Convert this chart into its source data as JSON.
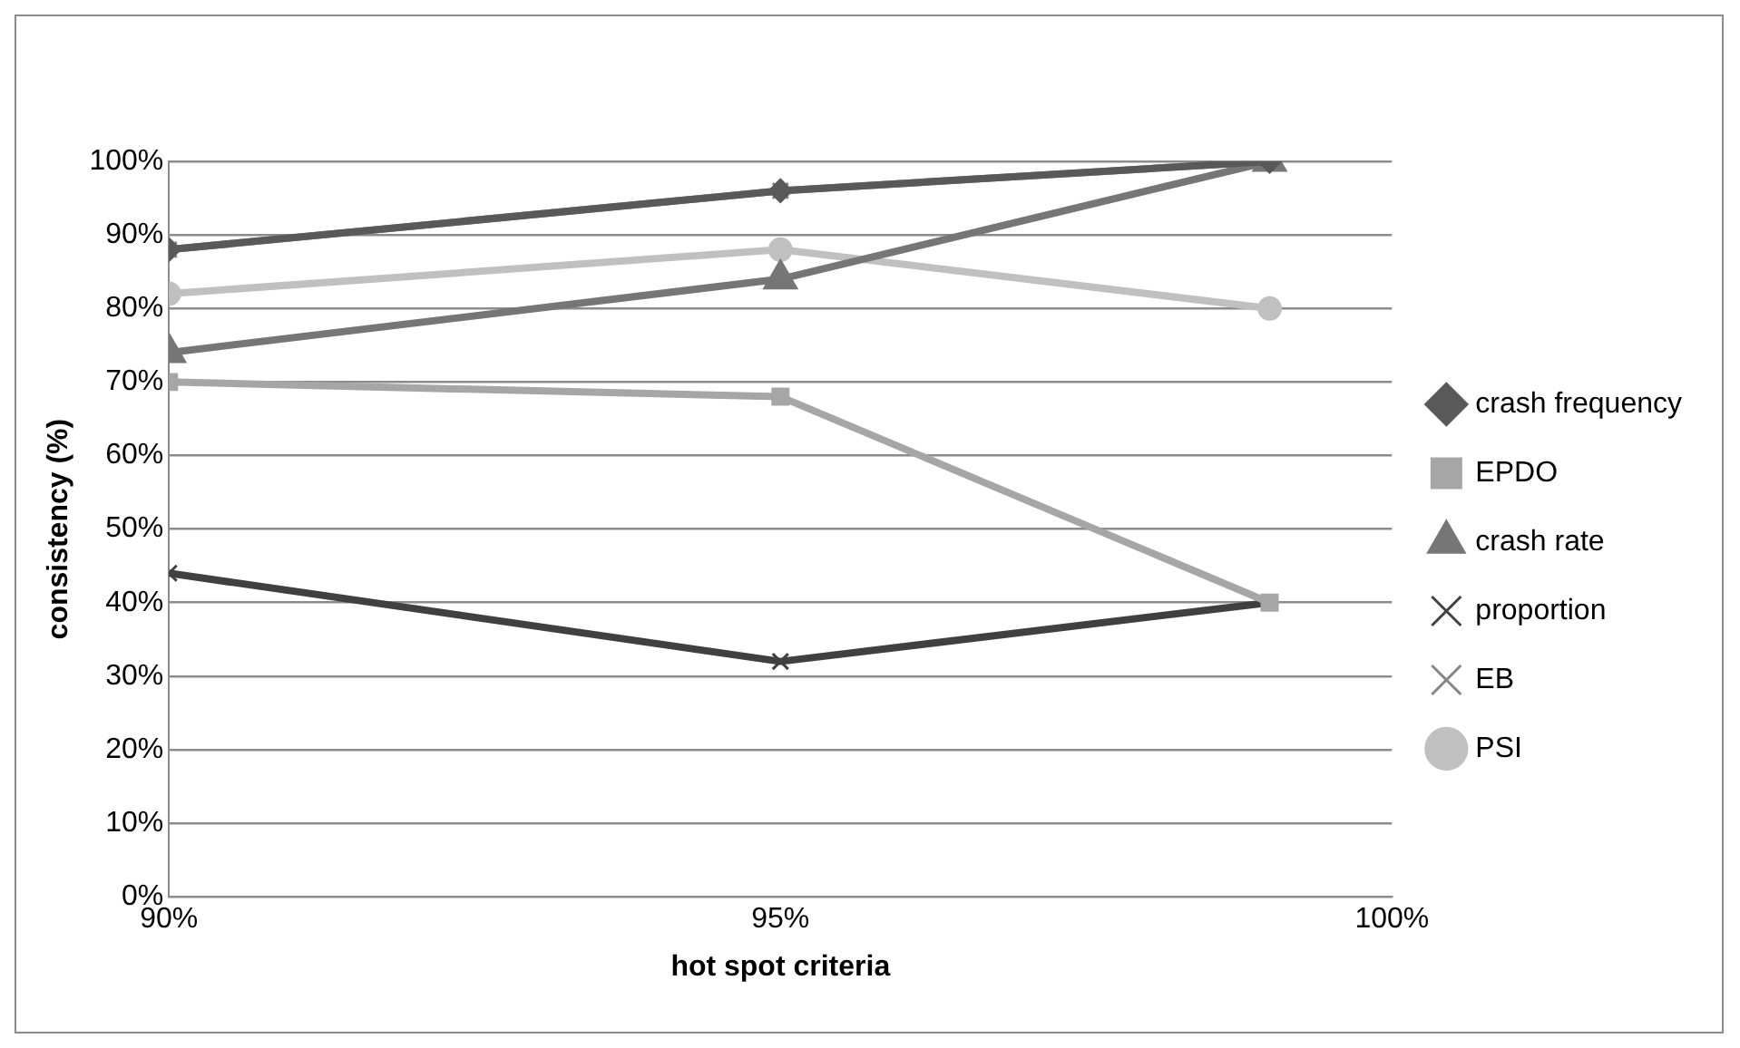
{
  "chart_data": {
    "type": "line",
    "xlabel": "hot spot criteria",
    "ylabel": "consistency (%)",
    "x": [
      90,
      95,
      99
    ],
    "series": [
      {
        "name": "crash frequency",
        "color": "#595959",
        "marker": "diamond",
        "values": [
          88,
          96,
          100
        ]
      },
      {
        "name": "EPDO",
        "color": "#a6a6a6",
        "marker": "square",
        "values": [
          70,
          68,
          40
        ]
      },
      {
        "name": "crash rate",
        "color": "#767676",
        "marker": "triangle",
        "values": [
          74,
          84,
          100
        ]
      },
      {
        "name": "proportion",
        "color": "#404040",
        "marker": "cross",
        "values": [
          44,
          32,
          40
        ]
      },
      {
        "name": "EB",
        "color": "#878787",
        "marker": "cross",
        "values": [
          88,
          96,
          100
        ]
      },
      {
        "name": "PSI",
        "color": "#c0c0c0",
        "marker": "circle",
        "values": [
          82,
          88,
          80
        ]
      }
    ],
    "xlim": [
      90,
      100
    ],
    "xticks": [
      {
        "value": 90,
        "label": "90%"
      },
      {
        "value": 95,
        "label": "95%"
      },
      {
        "value": 100,
        "label": "100%"
      }
    ],
    "ylim": [
      0,
      100
    ],
    "yticks": [
      {
        "value": 0,
        "label": "0%"
      },
      {
        "value": 10,
        "label": "10%"
      },
      {
        "value": 20,
        "label": "20%"
      },
      {
        "value": 30,
        "label": "30%"
      },
      {
        "value": 40,
        "label": "40%"
      },
      {
        "value": 50,
        "label": "50%"
      },
      {
        "value": 60,
        "label": "60%"
      },
      {
        "value": 70,
        "label": "70%"
      },
      {
        "value": 80,
        "label": "80%"
      },
      {
        "value": 90,
        "label": "90%"
      },
      {
        "value": 100,
        "label": "100%"
      }
    ],
    "grid": "y",
    "legend": "right"
  }
}
